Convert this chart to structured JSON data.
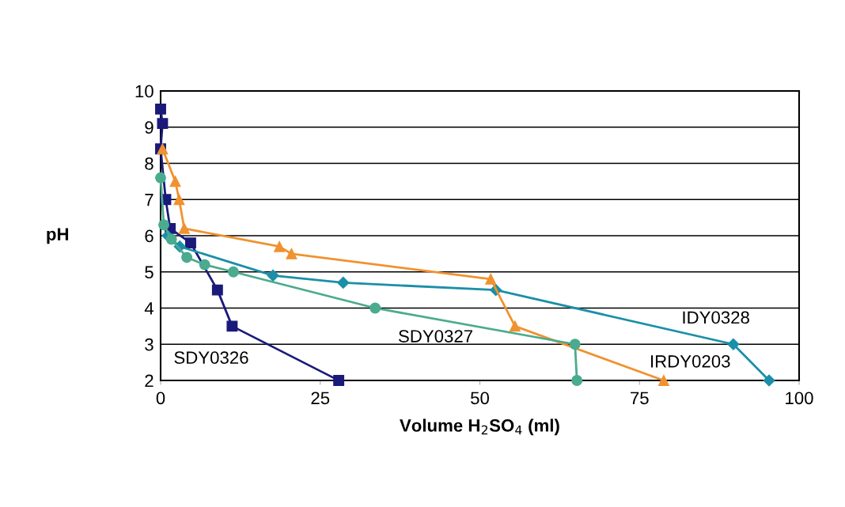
{
  "chart_data": {
    "type": "line",
    "xlabel": "Volume H$_{2}$SO$_{4}$ (ml)",
    "ylabel": "pH",
    "xlim": [
      0,
      100
    ],
    "xticks": [
      0,
      25,
      50,
      75,
      100
    ],
    "ylim": [
      2,
      10
    ],
    "yticks": [
      2,
      3,
      4,
      5,
      6,
      7,
      8,
      9,
      10
    ],
    "grid": "y",
    "legend": false,
    "series": [
      {
        "name": "SDY0326",
        "color": "#1a1a7a",
        "marker": "square",
        "x": [
          0,
          0.3,
          0,
          0.8,
          1.5,
          4.7,
          8.9,
          11.2,
          27.9
        ],
        "values": [
          9.5,
          9.1,
          8.4,
          7.0,
          6.2,
          5.8,
          4.5,
          3.5,
          2.0
        ]
      },
      {
        "name": "SDY0327",
        "color": "#4aab8e",
        "marker": "circle",
        "x": [
          0,
          0.5,
          1.7,
          4.1,
          6.9,
          11.4,
          33.6,
          64.9,
          65.2
        ],
        "values": [
          7.6,
          6.3,
          5.9,
          5.4,
          5.2,
          5.0,
          4.0,
          3.0,
          2.0
        ]
      },
      {
        "name": "IDY0328",
        "color": "#1b8fa8",
        "marker": "diamond",
        "x": [
          1.1,
          3.0,
          17.6,
          28.6,
          52.5,
          89.7,
          95.3
        ],
        "values": [
          6.0,
          5.7,
          4.9,
          4.7,
          4.5,
          3.0,
          2.0
        ]
      },
      {
        "name": "IRDY0203",
        "color": "#f0922f",
        "marker": "triangle",
        "x": [
          0.3,
          2.3,
          2.9,
          3.7,
          18.6,
          20.5,
          51.7,
          55.5,
          78.8
        ],
        "values": [
          8.4,
          7.5,
          7.0,
          6.2,
          5.7,
          5.5,
          4.8,
          3.5,
          2.0
        ]
      }
    ]
  }
}
